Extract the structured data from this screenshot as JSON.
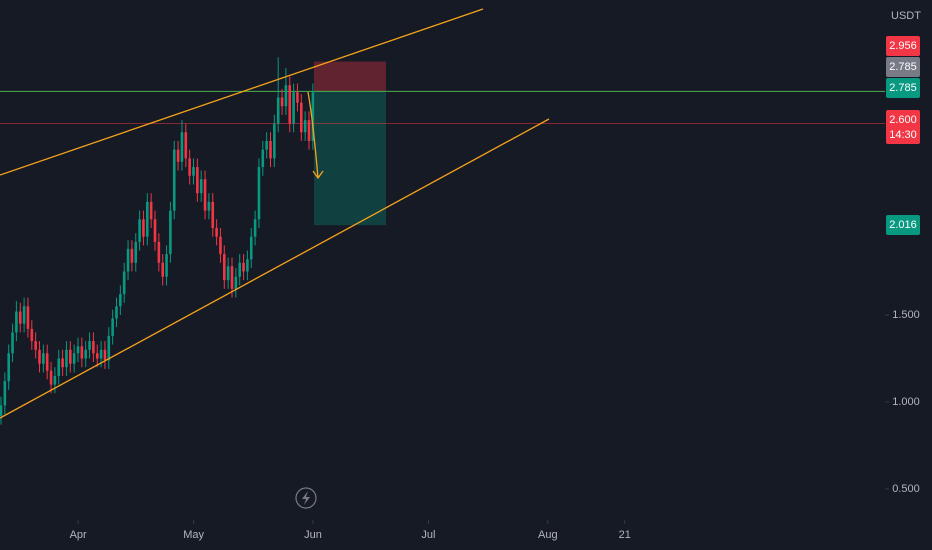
{
  "chart_data": {
    "type": "candlestick",
    "unit": "USDT",
    "up_color": "#089981",
    "down_color": "#f23645",
    "ylim": [
      0.322,
      3.31
    ],
    "yticks": [
      {
        "value": 0.5,
        "label": "0.500"
      },
      {
        "value": 1,
        "label": "1.000"
      },
      {
        "value": 1.5,
        "label": "1.500"
      }
    ],
    "xlim": [
      -20.3,
      209.6
    ],
    "xticks": [
      {
        "value": 0,
        "label": "Apr"
      },
      {
        "value": 30,
        "label": "May"
      },
      {
        "value": 61,
        "label": "Jun"
      },
      {
        "value": 91,
        "label": "Jul"
      },
      {
        "value": 122,
        "label": "Aug"
      },
      {
        "value": 142,
        "label": "21"
      }
    ],
    "price_labels": [
      {
        "value": 2.956,
        "label": "2.956",
        "color": "#f23645"
      },
      {
        "value": 2.785,
        "label": "2.785",
        "color": "#787b86"
      },
      {
        "value": 2.785,
        "label": "2.785",
        "color": "#089981"
      },
      {
        "value": 2.6,
        "label": "2.600",
        "color": "#f23645",
        "countdown": "14:30"
      },
      {
        "value": 2.016,
        "label": "2.016",
        "color": "#089981"
      }
    ],
    "ohlc": [
      [
        0.92,
        1.03,
        0.87,
        0.98
      ],
      [
        0.98,
        1.17,
        0.93,
        1.12
      ],
      [
        1.12,
        1.33,
        1.07,
        1.28
      ],
      [
        1.28,
        1.45,
        1.23,
        1.4
      ],
      [
        1.4,
        1.58,
        1.35,
        1.52
      ],
      [
        1.52,
        1.57,
        1.4,
        1.45
      ],
      [
        1.45,
        1.6,
        1.4,
        1.55
      ],
      [
        1.55,
        1.6,
        1.37,
        1.42
      ],
      [
        1.42,
        1.47,
        1.3,
        1.35
      ],
      [
        1.35,
        1.4,
        1.25,
        1.3
      ],
      [
        1.3,
        1.35,
        1.17,
        1.22
      ],
      [
        1.22,
        1.33,
        1.17,
        1.28
      ],
      [
        1.28,
        1.33,
        1.13,
        1.18
      ],
      [
        1.18,
        1.23,
        1.05,
        1.1
      ],
      [
        1.1,
        1.2,
        1.05,
        1.15
      ],
      [
        1.15,
        1.3,
        1.1,
        1.25
      ],
      [
        1.25,
        1.3,
        1.15,
        1.2
      ],
      [
        1.2,
        1.35,
        1.15,
        1.3
      ],
      [
        1.3,
        1.35,
        1.17,
        1.22
      ],
      [
        1.22,
        1.33,
        1.17,
        1.28
      ],
      [
        1.28,
        1.37,
        1.23,
        1.32
      ],
      [
        1.32,
        1.37,
        1.2,
        1.25
      ],
      [
        1.25,
        1.35,
        1.2,
        1.3
      ],
      [
        1.3,
        1.4,
        1.25,
        1.35
      ],
      [
        1.35,
        1.4,
        1.23,
        1.28
      ],
      [
        1.28,
        1.33,
        1.2,
        1.25
      ],
      [
        1.25,
        1.35,
        1.2,
        1.3
      ],
      [
        1.3,
        1.35,
        1.19,
        1.24
      ],
      [
        1.24,
        1.43,
        1.19,
        1.38
      ],
      [
        1.38,
        1.53,
        1.33,
        1.48
      ],
      [
        1.48,
        1.6,
        1.43,
        1.55
      ],
      [
        1.55,
        1.67,
        1.5,
        1.62
      ],
      [
        1.62,
        1.8,
        1.57,
        1.75
      ],
      [
        1.75,
        1.93,
        1.7,
        1.88
      ],
      [
        1.88,
        1.93,
        1.75,
        1.8
      ],
      [
        1.8,
        1.97,
        1.75,
        1.92
      ],
      [
        1.92,
        2.1,
        1.87,
        2.05
      ],
      [
        2.05,
        2.1,
        1.9,
        1.95
      ],
      [
        1.95,
        2.2,
        1.9,
        2.15
      ],
      [
        2.15,
        2.2,
        2.0,
        2.05
      ],
      [
        2.05,
        2.1,
        1.87,
        1.92
      ],
      [
        1.92,
        1.97,
        1.75,
        1.8
      ],
      [
        1.8,
        1.85,
        1.67,
        1.72
      ],
      [
        1.72,
        1.9,
        1.67,
        1.85
      ],
      [
        1.85,
        2.15,
        1.8,
        2.1
      ],
      [
        2.1,
        2.5,
        2.05,
        2.45
      ],
      [
        2.45,
        2.5,
        2.33,
        2.38
      ],
      [
        2.38,
        2.62,
        2.33,
        2.55
      ],
      [
        2.55,
        2.6,
        2.35,
        2.4
      ],
      [
        2.4,
        2.45,
        2.25,
        2.3
      ],
      [
        2.3,
        2.4,
        2.25,
        2.35
      ],
      [
        2.35,
        2.4,
        2.15,
        2.2
      ],
      [
        2.2,
        2.33,
        2.15,
        2.28
      ],
      [
        2.28,
        2.33,
        2.05,
        2.1
      ],
      [
        2.1,
        2.2,
        2.05,
        2.15
      ],
      [
        2.15,
        2.2,
        1.95,
        2.0
      ],
      [
        2.0,
        2.05,
        1.9,
        1.95
      ],
      [
        1.95,
        2.0,
        1.8,
        1.85
      ],
      [
        1.85,
        1.9,
        1.65,
        1.7
      ],
      [
        1.7,
        1.83,
        1.65,
        1.78
      ],
      [
        1.78,
        1.83,
        1.6,
        1.65
      ],
      [
        1.65,
        1.77,
        1.6,
        1.72
      ],
      [
        1.72,
        1.85,
        1.67,
        1.8
      ],
      [
        1.8,
        1.85,
        1.7,
        1.75
      ],
      [
        1.75,
        1.87,
        1.7,
        1.82
      ],
      [
        1.82,
        2.0,
        1.77,
        1.95
      ],
      [
        1.95,
        2.1,
        1.9,
        2.05
      ],
      [
        2.05,
        2.4,
        2.0,
        2.35
      ],
      [
        2.35,
        2.5,
        2.3,
        2.45
      ],
      [
        2.45,
        2.55,
        2.4,
        2.5
      ],
      [
        2.5,
        2.55,
        2.35,
        2.4
      ],
      [
        2.4,
        2.65,
        2.35,
        2.6
      ],
      [
        2.6,
        2.98,
        2.55,
        2.75
      ],
      [
        2.75,
        2.8,
        2.65,
        2.7
      ],
      [
        2.7,
        2.92,
        2.65,
        2.82
      ],
      [
        2.82,
        2.87,
        2.55,
        2.6
      ],
      [
        2.6,
        2.83,
        2.55,
        2.78
      ],
      [
        2.78,
        2.83,
        2.67,
        2.72
      ],
      [
        2.72,
        2.77,
        2.5,
        2.55
      ],
      [
        2.55,
        2.67,
        2.5,
        2.62
      ],
      [
        2.62,
        2.67,
        2.45,
        2.5
      ],
      [
        2.5,
        2.83,
        2.45,
        2.78
      ]
    ]
  }
}
